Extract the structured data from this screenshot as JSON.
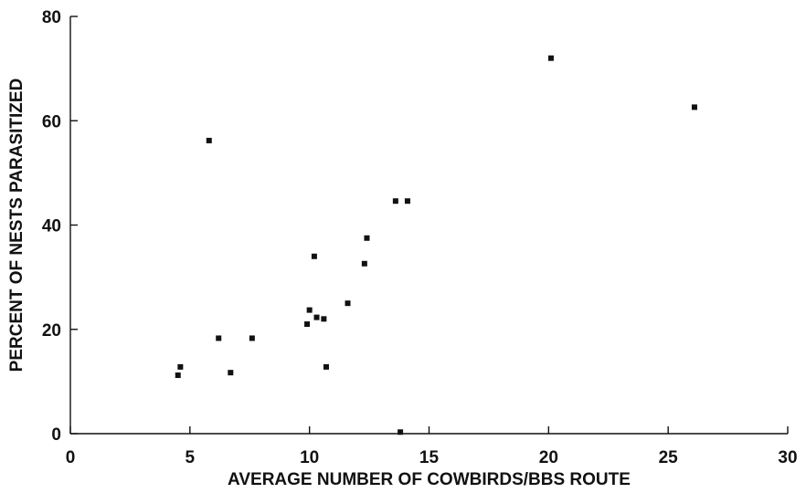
{
  "chart_data": {
    "type": "scatter",
    "title": "",
    "xlabel": "AVERAGE NUMBER OF COWBIRDS/BBS ROUTE",
    "ylabel": "PERCENT OF NESTS PARASITIZED",
    "xlim": [
      0,
      30
    ],
    "ylim": [
      0,
      80
    ],
    "x_ticks": [
      "0",
      "5",
      "10",
      "15",
      "20",
      "25",
      "30"
    ],
    "y_ticks": [
      "0",
      "20",
      "40",
      "60",
      "80"
    ],
    "grid": false,
    "legend": "none",
    "point_color": "#111111",
    "points": [
      {
        "x": 4.5,
        "y": 11.2
      },
      {
        "x": 4.6,
        "y": 12.8
      },
      {
        "x": 5.8,
        "y": 56.2
      },
      {
        "x": 6.2,
        "y": 18.3
      },
      {
        "x": 6.7,
        "y": 11.7
      },
      {
        "x": 7.6,
        "y": 18.3
      },
      {
        "x": 9.9,
        "y": 21.0
      },
      {
        "x": 10.0,
        "y": 23.7
      },
      {
        "x": 10.2,
        "y": 34.0
      },
      {
        "x": 10.3,
        "y": 22.3
      },
      {
        "x": 10.6,
        "y": 22.0
      },
      {
        "x": 10.7,
        "y": 12.8
      },
      {
        "x": 11.6,
        "y": 25.0
      },
      {
        "x": 12.3,
        "y": 32.6
      },
      {
        "x": 12.4,
        "y": 37.5
      },
      {
        "x": 13.6,
        "y": 44.6
      },
      {
        "x": 13.8,
        "y": 0.3
      },
      {
        "x": 14.1,
        "y": 44.6
      },
      {
        "x": 20.1,
        "y": 72.0
      },
      {
        "x": 26.1,
        "y": 62.6
      }
    ]
  }
}
